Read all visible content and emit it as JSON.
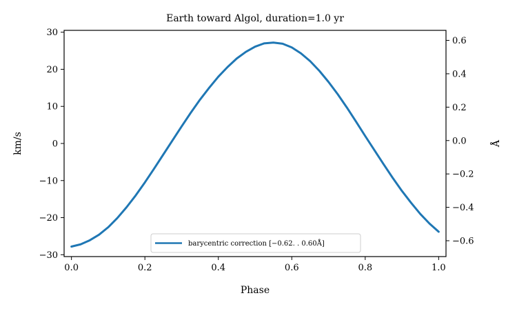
{
  "chart_data": {
    "type": "line",
    "title": "Earth toward Algol, duration=1.0 yr",
    "xlabel": "Phase",
    "ylabel": "km/s",
    "ylabel_right": "Å",
    "xlim": [
      -0.02,
      1.02
    ],
    "ylim": [
      -30.5,
      30.5
    ],
    "ylim_right": [
      -0.695,
      0.66
    ],
    "xticks": [
      0.0,
      0.2,
      0.4,
      0.6,
      0.8,
      1.0
    ],
    "xtick_labels": [
      "0.0",
      "0.2",
      "0.4",
      "0.6",
      "0.8",
      "1.0"
    ],
    "yticks": [
      -30,
      -20,
      -10,
      0,
      10,
      20,
      30
    ],
    "ytick_labels": [
      "−30",
      "−20",
      "−10",
      "0",
      "10",
      "20",
      "30"
    ],
    "yticks_right": [
      -0.6,
      -0.4,
      -0.2,
      0.0,
      0.2,
      0.4,
      0.6
    ],
    "ytick_labels_right": [
      "−0.6",
      "−0.4",
      "−0.2",
      "0.0",
      "0.2",
      "0.4",
      "0.6"
    ],
    "grid": false,
    "legend_position": "bottom-center",
    "series": [
      {
        "name": "barycentric correction [−0.62. . 0.60Å]",
        "color": "#1f77b4",
        "x": [
          0.0,
          0.025,
          0.05,
          0.075,
          0.1,
          0.125,
          0.15,
          0.175,
          0.2,
          0.225,
          0.25,
          0.275,
          0.3,
          0.325,
          0.35,
          0.375,
          0.4,
          0.425,
          0.45,
          0.475,
          0.5,
          0.525,
          0.55,
          0.575,
          0.6,
          0.625,
          0.65,
          0.675,
          0.7,
          0.725,
          0.75,
          0.775,
          0.8,
          0.825,
          0.85,
          0.875,
          0.9,
          0.925,
          0.95,
          0.975,
          1.0
        ],
        "values": [
          -27.8,
          -27.2,
          -26.1,
          -24.6,
          -22.6,
          -20.1,
          -17.2,
          -14.0,
          -10.5,
          -6.8,
          -3.0,
          0.8,
          4.6,
          8.3,
          11.8,
          15.0,
          18.0,
          20.6,
          22.9,
          24.7,
          26.1,
          27.0,
          27.2,
          26.9,
          25.9,
          24.3,
          22.2,
          19.6,
          16.6,
          13.3,
          9.7,
          5.9,
          2.0,
          -1.8,
          -5.6,
          -9.3,
          -12.8,
          -16.0,
          -19.0,
          -21.6,
          -23.8
        ]
      }
    ]
  }
}
